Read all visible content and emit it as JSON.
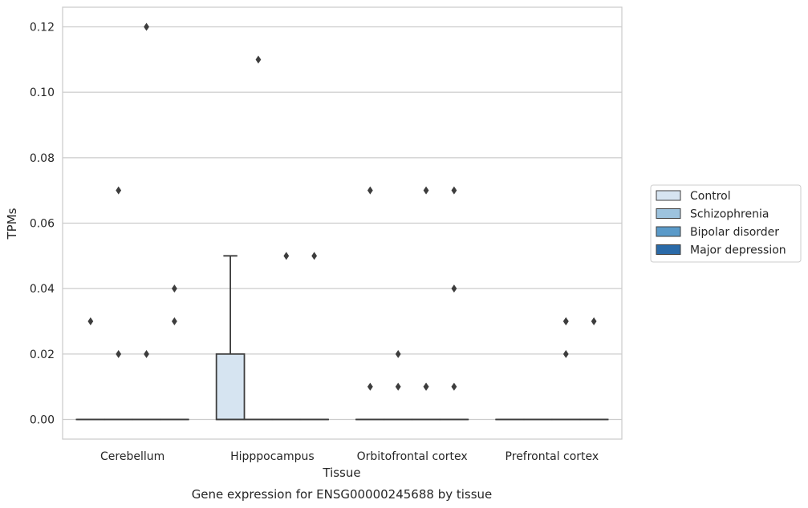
{
  "chart_data": {
    "type": "box",
    "title": "",
    "caption": "Gene expression for ENSG00000245688 by tissue",
    "xlabel": "Tissue",
    "ylabel": "TPMs",
    "ylim": [
      -0.006,
      0.126
    ],
    "yticks": [
      "0.00",
      "0.02",
      "0.04",
      "0.06",
      "0.08",
      "0.10",
      "0.12"
    ],
    "ytick_values": [
      0,
      0.02,
      0.04,
      0.06,
      0.08,
      0.1,
      0.12
    ],
    "grid": "horizontal",
    "legend_position": "right",
    "categories": [
      "Cerebellum",
      "Hipppocampus",
      "Orbitofrontal cortex",
      "Prefrontal cortex"
    ],
    "series": [
      {
        "name": "Control",
        "color": "#d6e4f1",
        "boxes": [
          {
            "q1": 0,
            "median": 0,
            "q3": 0,
            "whisker_low": 0,
            "whisker_high": 0,
            "outliers": [
              0.03
            ]
          },
          {
            "q1": 0,
            "median": 0,
            "q3": 0.02,
            "whisker_low": 0,
            "whisker_high": 0.05,
            "outliers": []
          },
          {
            "q1": 0,
            "median": 0,
            "q3": 0,
            "whisker_low": 0,
            "whisker_high": 0,
            "outliers": [
              0.07,
              0.01
            ]
          },
          {
            "q1": 0,
            "median": 0,
            "q3": 0,
            "whisker_low": 0,
            "whisker_high": 0,
            "outliers": []
          }
        ]
      },
      {
        "name": "Schizophrenia",
        "color": "#9dc3de",
        "boxes": [
          {
            "q1": 0,
            "median": 0,
            "q3": 0,
            "whisker_low": 0,
            "whisker_high": 0,
            "outliers": [
              0.07,
              0.02
            ]
          },
          {
            "q1": 0,
            "median": 0,
            "q3": 0,
            "whisker_low": 0,
            "whisker_high": 0,
            "outliers": [
              0.11
            ]
          },
          {
            "q1": 0,
            "median": 0,
            "q3": 0,
            "whisker_low": 0,
            "whisker_high": 0,
            "outliers": [
              0.02,
              0.01
            ]
          },
          {
            "q1": 0,
            "median": 0,
            "q3": 0,
            "whisker_low": 0,
            "whisker_high": 0,
            "outliers": []
          }
        ]
      },
      {
        "name": "Bipolar disorder",
        "color": "#5a9ac9",
        "boxes": [
          {
            "q1": 0,
            "median": 0,
            "q3": 0,
            "whisker_low": 0,
            "whisker_high": 0,
            "outliers": [
              0.12,
              0.02
            ]
          },
          {
            "q1": 0,
            "median": 0,
            "q3": 0,
            "whisker_low": 0,
            "whisker_high": 0,
            "outliers": [
              0.05
            ]
          },
          {
            "q1": 0,
            "median": 0,
            "q3": 0,
            "whisker_low": 0,
            "whisker_high": 0,
            "outliers": [
              0.07,
              0.01,
              0.01
            ]
          },
          {
            "q1": 0,
            "median": 0,
            "q3": 0,
            "whisker_low": 0,
            "whisker_high": 0,
            "outliers": [
              0.02,
              0.03,
              0.03
            ]
          }
        ]
      },
      {
        "name": "Major depression",
        "color": "#2a6aa8",
        "boxes": [
          {
            "q1": 0,
            "median": 0,
            "q3": 0,
            "whisker_low": 0,
            "whisker_high": 0,
            "outliers": [
              0.04,
              0.03
            ]
          },
          {
            "q1": 0,
            "median": 0,
            "q3": 0,
            "whisker_low": 0,
            "whisker_high": 0,
            "outliers": [
              0.05
            ]
          },
          {
            "q1": 0,
            "median": 0,
            "q3": 0,
            "whisker_low": 0,
            "whisker_high": 0,
            "outliers": [
              0.07,
              0.04,
              0.01
            ]
          },
          {
            "q1": 0,
            "median": 0,
            "q3": 0,
            "whisker_low": 0,
            "whisker_high": 0,
            "outliers": [
              0.03
            ]
          }
        ]
      }
    ]
  },
  "colors": {
    "grid": "#cccccc",
    "frame": "#cccccc",
    "edge": "#3d3d3d"
  }
}
